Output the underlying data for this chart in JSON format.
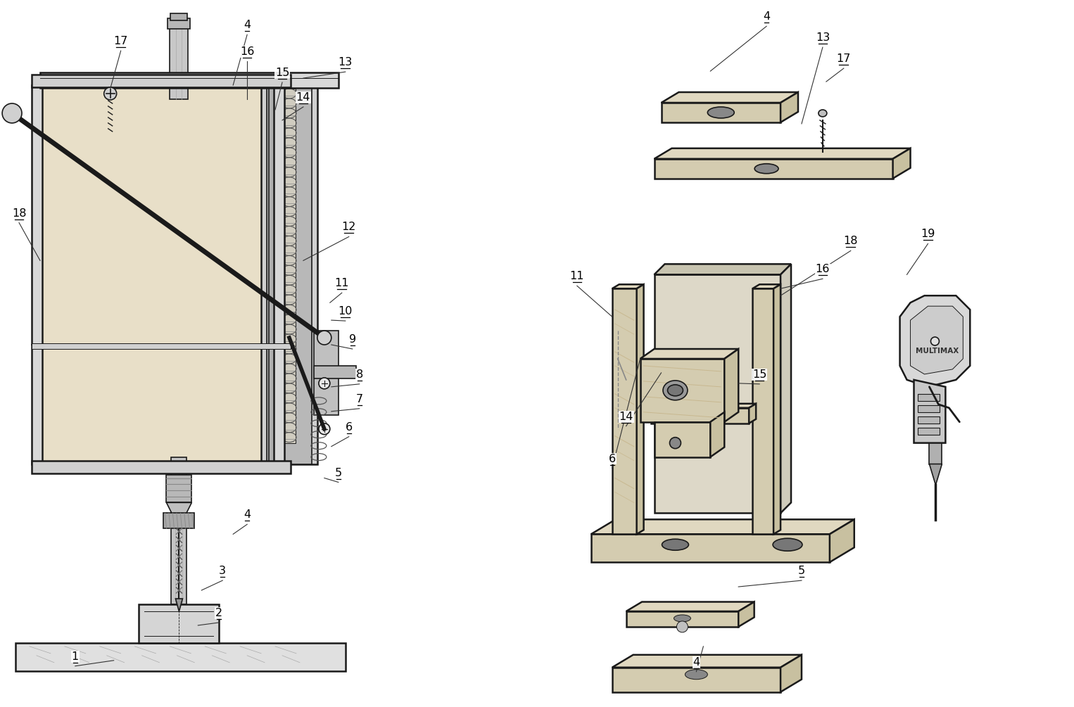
{
  "background_color": "#ffffff",
  "figsize": [
    15.26,
    10.05
  ],
  "dpi": 100,
  "line_color": "#1a1a1a",
  "wood_color": "#e8dfc8",
  "wood_grain_color": "#c8b890",
  "metal_color": "#c8c8c8",
  "metal_dark": "#a0a0a0",
  "label_color": "#000000"
}
